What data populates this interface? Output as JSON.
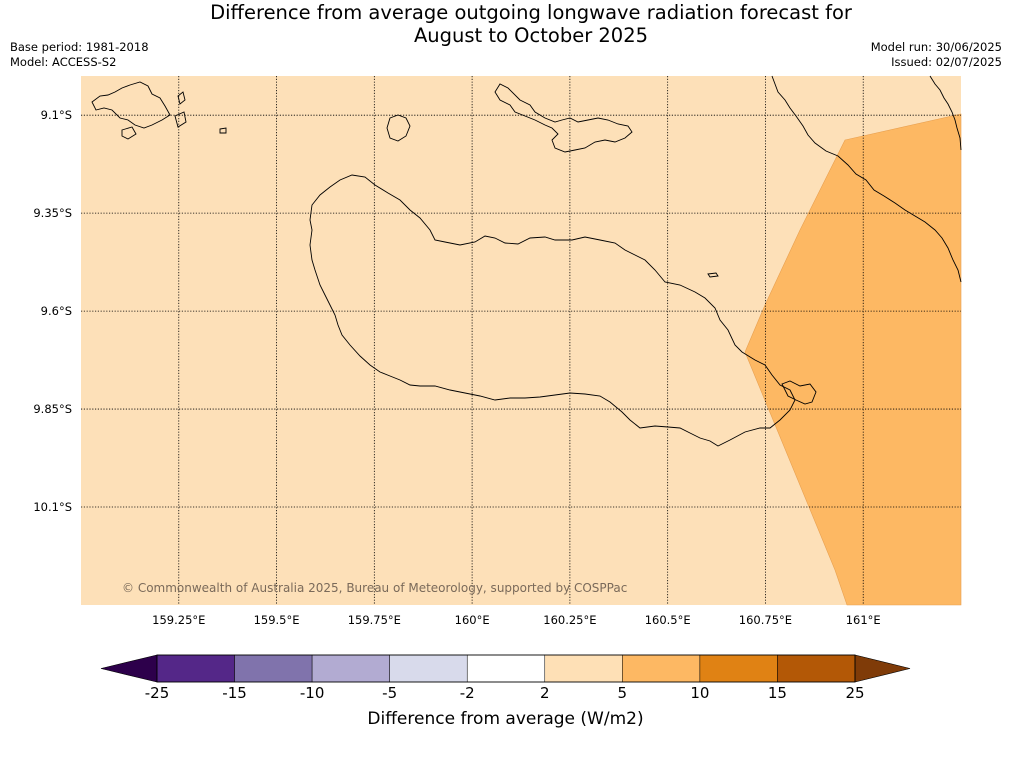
{
  "header": {
    "title_line1": "Difference from average outgoing longwave radiation forecast for",
    "title_line2": "August to October 2025",
    "base_period": "Base period: 1981-2018",
    "model": "Model: ACCESS-S2",
    "model_run": "Model run: 30/06/2025",
    "issued": "Issued: 02/07/2025"
  },
  "map": {
    "lon_range": [
      159.0,
      161.25
    ],
    "lat_range": [
      -9.0,
      -10.35
    ],
    "background_color": "#fde0b8",
    "anomaly_zone_color": "#fdb863",
    "lon_ticks": [
      "159.25°E",
      "159.5°E",
      "159.75°E",
      "160°E",
      "160.25°E",
      "160.5°E",
      "160.75°E",
      "161°E"
    ],
    "lat_ticks": [
      "9.1°S",
      "9.35°S",
      "9.6°S",
      "9.85°S",
      "10.1°S"
    ],
    "copyright": "© Commonwealth of Australia 2025, Bureau of Meteorology, supported by COSPPac"
  },
  "colorbar": {
    "title": "Difference from average (W/m2)",
    "labels": [
      "-25",
      "-15",
      "-10",
      "-5",
      "-2",
      "2",
      "5",
      "10",
      "15",
      "25"
    ],
    "colors": [
      "#2d004b",
      "#542788",
      "#8073ac",
      "#b2abd2",
      "#d8daeb",
      "#ffffff",
      "#fee0b6",
      "#fdb863",
      "#e08214",
      "#b35806",
      "#7f3b08"
    ]
  }
}
